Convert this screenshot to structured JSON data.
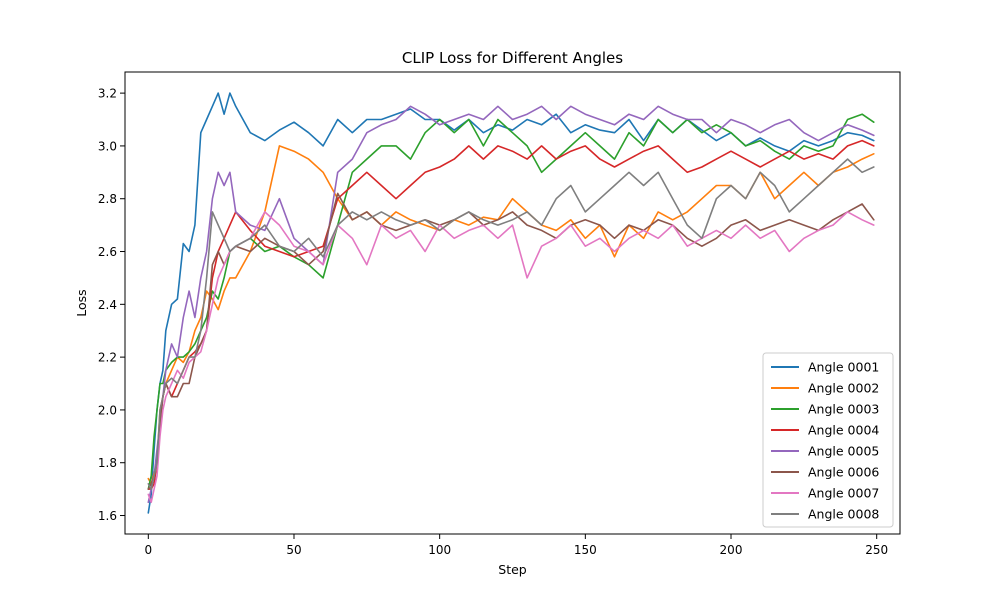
{
  "chart_data": {
    "type": "line",
    "title": "CLIP Loss for Different Angles",
    "xlabel": "Step",
    "ylabel": "Loss",
    "xlim": [
      -8,
      258
    ],
    "ylim": [
      1.53,
      3.28
    ],
    "xticks": [
      0,
      50,
      100,
      150,
      200,
      250
    ],
    "yticks": [
      1.6,
      1.8,
      2.0,
      2.2,
      2.4,
      2.6,
      2.8,
      3.0,
      3.2
    ],
    "xtick_labels": [
      "0",
      "50",
      "100",
      "150",
      "200",
      "250"
    ],
    "ytick_labels": [
      "1.6",
      "1.8",
      "2.0",
      "2.2",
      "2.4",
      "2.6",
      "2.8",
      "3.0",
      "3.2"
    ],
    "grid": false,
    "legend_position": "lower-right",
    "colors": [
      "#1f77b4",
      "#ff7f0e",
      "#2ca02c",
      "#d62728",
      "#9467bd",
      "#8c564b",
      "#e377c2",
      "#7f7f7f"
    ],
    "x": [
      0,
      1,
      2,
      3,
      4,
      5,
      6,
      8,
      10,
      12,
      14,
      16,
      18,
      20,
      22,
      24,
      26,
      28,
      30,
      35,
      40,
      45,
      50,
      55,
      60,
      65,
      70,
      75,
      80,
      85,
      90,
      95,
      100,
      105,
      110,
      115,
      120,
      125,
      130,
      135,
      140,
      145,
      150,
      155,
      160,
      165,
      170,
      175,
      180,
      185,
      190,
      195,
      200,
      205,
      210,
      215,
      220,
      225,
      230,
      235,
      240,
      245,
      249
    ],
    "series": [
      {
        "name": "Angle 0001",
        "values": [
          1.61,
          1.68,
          1.85,
          2.0,
          2.1,
          2.15,
          2.3,
          2.4,
          2.42,
          2.63,
          2.6,
          2.7,
          3.05,
          3.1,
          3.15,
          3.2,
          3.12,
          3.2,
          3.15,
          3.05,
          3.02,
          3.06,
          3.09,
          3.05,
          3.0,
          3.1,
          3.05,
          3.1,
          3.1,
          3.12,
          3.14,
          3.1,
          3.1,
          3.06,
          3.1,
          3.05,
          3.08,
          3.06,
          3.1,
          3.08,
          3.12,
          3.05,
          3.08,
          3.06,
          3.05,
          3.1,
          3.02,
          3.1,
          3.05,
          3.1,
          3.06,
          3.02,
          3.05,
          3.0,
          3.03,
          3.0,
          2.98,
          3.02,
          3.0,
          3.02,
          3.05,
          3.04,
          3.02
        ]
      },
      {
        "name": "Angle 0002",
        "values": [
          1.74,
          1.72,
          1.76,
          1.8,
          2.0,
          2.05,
          2.1,
          2.15,
          2.2,
          2.18,
          2.22,
          2.3,
          2.35,
          2.45,
          2.42,
          2.38,
          2.45,
          2.5,
          2.5,
          2.6,
          2.75,
          3.0,
          2.98,
          2.95,
          2.9,
          2.8,
          2.72,
          2.75,
          2.7,
          2.75,
          2.72,
          2.7,
          2.68,
          2.72,
          2.7,
          2.73,
          2.72,
          2.8,
          2.75,
          2.7,
          2.68,
          2.72,
          2.65,
          2.7,
          2.58,
          2.7,
          2.65,
          2.75,
          2.72,
          2.75,
          2.8,
          2.85,
          2.85,
          2.8,
          2.9,
          2.8,
          2.85,
          2.9,
          2.85,
          2.9,
          2.92,
          2.95,
          2.97
        ]
      },
      {
        "name": "Angle 0003",
        "values": [
          1.7,
          1.75,
          1.9,
          2.0,
          2.1,
          2.1,
          2.15,
          2.18,
          2.2,
          2.2,
          2.22,
          2.25,
          2.3,
          2.35,
          2.45,
          2.42,
          2.5,
          2.6,
          2.62,
          2.65,
          2.6,
          2.62,
          2.58,
          2.55,
          2.5,
          2.7,
          2.9,
          2.95,
          3.0,
          3.0,
          2.95,
          3.05,
          3.1,
          3.05,
          3.1,
          3.0,
          3.1,
          3.05,
          3.0,
          2.9,
          2.95,
          3.0,
          3.05,
          3.0,
          2.95,
          3.05,
          3.0,
          3.1,
          3.05,
          3.1,
          3.05,
          3.08,
          3.05,
          3.0,
          3.02,
          2.98,
          2.95,
          3.0,
          2.98,
          3.0,
          3.1,
          3.12,
          3.09
        ]
      },
      {
        "name": "Angle 0004",
        "values": [
          1.7,
          1.7,
          1.72,
          1.8,
          1.95,
          2.05,
          2.1,
          2.05,
          2.1,
          2.15,
          2.2,
          2.22,
          2.25,
          2.3,
          2.5,
          2.6,
          2.65,
          2.7,
          2.75,
          2.68,
          2.62,
          2.6,
          2.58,
          2.6,
          2.62,
          2.8,
          2.85,
          2.9,
          2.85,
          2.8,
          2.85,
          2.9,
          2.92,
          2.95,
          3.0,
          2.95,
          3.0,
          2.98,
          2.95,
          3.0,
          2.95,
          2.98,
          3.0,
          2.95,
          2.92,
          2.95,
          2.98,
          3.0,
          2.95,
          2.9,
          2.92,
          2.95,
          2.98,
          2.95,
          2.92,
          2.95,
          2.98,
          2.95,
          2.97,
          2.95,
          3.0,
          3.02,
          3.0
        ]
      },
      {
        "name": "Angle 0005",
        "values": [
          1.65,
          1.7,
          1.75,
          1.85,
          1.95,
          2.05,
          2.15,
          2.25,
          2.2,
          2.35,
          2.45,
          2.35,
          2.5,
          2.6,
          2.8,
          2.9,
          2.85,
          2.9,
          2.75,
          2.7,
          2.68,
          2.8,
          2.65,
          2.6,
          2.55,
          2.9,
          2.95,
          3.05,
          3.08,
          3.1,
          3.15,
          3.12,
          3.08,
          3.1,
          3.12,
          3.1,
          3.15,
          3.1,
          3.12,
          3.15,
          3.1,
          3.15,
          3.12,
          3.1,
          3.08,
          3.12,
          3.1,
          3.15,
          3.12,
          3.1,
          3.1,
          3.05,
          3.1,
          3.08,
          3.05,
          3.08,
          3.1,
          3.05,
          3.02,
          3.05,
          3.08,
          3.06,
          3.04
        ]
      },
      {
        "name": "Angle 0006",
        "values": [
          1.7,
          1.72,
          1.75,
          1.8,
          1.95,
          2.05,
          2.1,
          2.05,
          2.05,
          2.1,
          2.1,
          2.2,
          2.25,
          2.3,
          2.55,
          2.6,
          2.55,
          2.6,
          2.62,
          2.6,
          2.65,
          2.62,
          2.6,
          2.55,
          2.6,
          2.82,
          2.72,
          2.75,
          2.7,
          2.68,
          2.7,
          2.72,
          2.7,
          2.72,
          2.75,
          2.7,
          2.72,
          2.75,
          2.7,
          2.68,
          2.65,
          2.7,
          2.72,
          2.7,
          2.65,
          2.7,
          2.68,
          2.72,
          2.7,
          2.65,
          2.62,
          2.65,
          2.7,
          2.72,
          2.68,
          2.7,
          2.72,
          2.7,
          2.68,
          2.72,
          2.75,
          2.78,
          2.72
        ]
      },
      {
        "name": "Angle 0007",
        "values": [
          1.68,
          1.65,
          1.7,
          1.75,
          1.9,
          2.0,
          2.05,
          2.1,
          2.15,
          2.12,
          2.18,
          2.2,
          2.22,
          2.3,
          2.4,
          2.5,
          2.55,
          2.6,
          2.62,
          2.65,
          2.75,
          2.7,
          2.62,
          2.6,
          2.55,
          2.7,
          2.65,
          2.55,
          2.7,
          2.65,
          2.68,
          2.6,
          2.7,
          2.65,
          2.68,
          2.7,
          2.65,
          2.7,
          2.5,
          2.62,
          2.65,
          2.7,
          2.62,
          2.65,
          2.6,
          2.65,
          2.68,
          2.65,
          2.7,
          2.62,
          2.65,
          2.68,
          2.65,
          2.7,
          2.65,
          2.68,
          2.6,
          2.65,
          2.68,
          2.7,
          2.75,
          2.72,
          2.7
        ]
      },
      {
        "name": "Angle 0008",
        "values": [
          1.72,
          1.7,
          1.75,
          1.8,
          2.0,
          2.05,
          2.1,
          2.12,
          2.1,
          2.15,
          2.2,
          2.2,
          2.3,
          2.5,
          2.75,
          2.7,
          2.65,
          2.6,
          2.62,
          2.65,
          2.7,
          2.62,
          2.6,
          2.65,
          2.58,
          2.7,
          2.75,
          2.72,
          2.75,
          2.72,
          2.7,
          2.72,
          2.68,
          2.72,
          2.75,
          2.72,
          2.7,
          2.72,
          2.75,
          2.7,
          2.8,
          2.85,
          2.75,
          2.8,
          2.85,
          2.9,
          2.85,
          2.9,
          2.8,
          2.7,
          2.65,
          2.8,
          2.85,
          2.8,
          2.9,
          2.85,
          2.75,
          2.8,
          2.85,
          2.9,
          2.95,
          2.9,
          2.92
        ]
      }
    ]
  }
}
